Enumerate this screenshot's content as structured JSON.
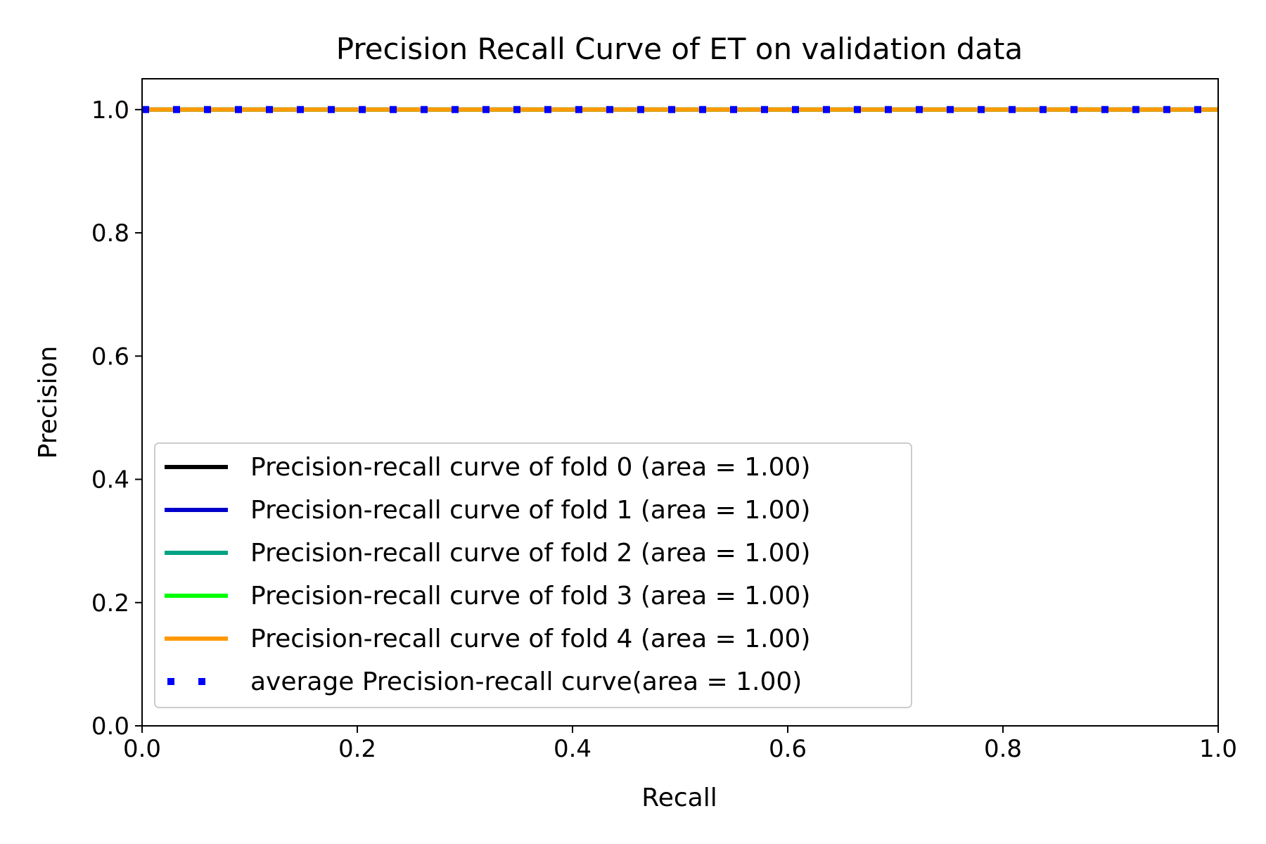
{
  "chart_data": {
    "type": "line",
    "title": "Precision Recall Curve of ET on validation data",
    "xlabel": "Recall",
    "ylabel": "Precision",
    "xlim": [
      0.0,
      1.0
    ],
    "ylim": [
      0.0,
      1.05
    ],
    "xticks": [
      0.0,
      0.2,
      0.4,
      0.6,
      0.8,
      1.0
    ],
    "yticks": [
      0.0,
      0.2,
      0.4,
      0.6,
      0.8,
      1.0
    ],
    "xtick_labels": [
      "0.0",
      "0.2",
      "0.4",
      "0.6",
      "0.8",
      "1.0"
    ],
    "ytick_labels": [
      "0.0",
      "0.2",
      "0.4",
      "0.6",
      "0.8",
      "1.0"
    ],
    "grid": false,
    "legend_position": "lower-left",
    "series": [
      {
        "name": "Precision-recall curve of fold 0 (area = 1.00)",
        "color": "#000000",
        "style": "solid",
        "x": [
          0.0,
          1.0
        ],
        "y": [
          1.0,
          1.0
        ]
      },
      {
        "name": "Precision-recall curve of fold 1 (area = 1.00)",
        "color": "#0000cc",
        "style": "solid",
        "x": [
          0.0,
          1.0
        ],
        "y": [
          1.0,
          1.0
        ]
      },
      {
        "name": "Precision-recall curve of fold 2 (area = 1.00)",
        "color": "#00a383",
        "style": "solid",
        "x": [
          0.0,
          1.0
        ],
        "y": [
          1.0,
          1.0
        ]
      },
      {
        "name": "Precision-recall curve of fold 3 (area = 1.00)",
        "color": "#00ff00",
        "style": "solid",
        "x": [
          0.0,
          1.0
        ],
        "y": [
          1.0,
          1.0
        ]
      },
      {
        "name": "Precision-recall curve of fold 4 (area = 1.00)",
        "color": "#ff9900",
        "style": "solid",
        "x": [
          0.0,
          1.0
        ],
        "y": [
          1.0,
          1.0
        ]
      },
      {
        "name": "average Precision-recall curve(area = 1.00)",
        "color": "#0000ff",
        "style": "dotted",
        "x": [
          0.0,
          1.0
        ],
        "y": [
          1.0,
          1.0
        ]
      }
    ]
  }
}
